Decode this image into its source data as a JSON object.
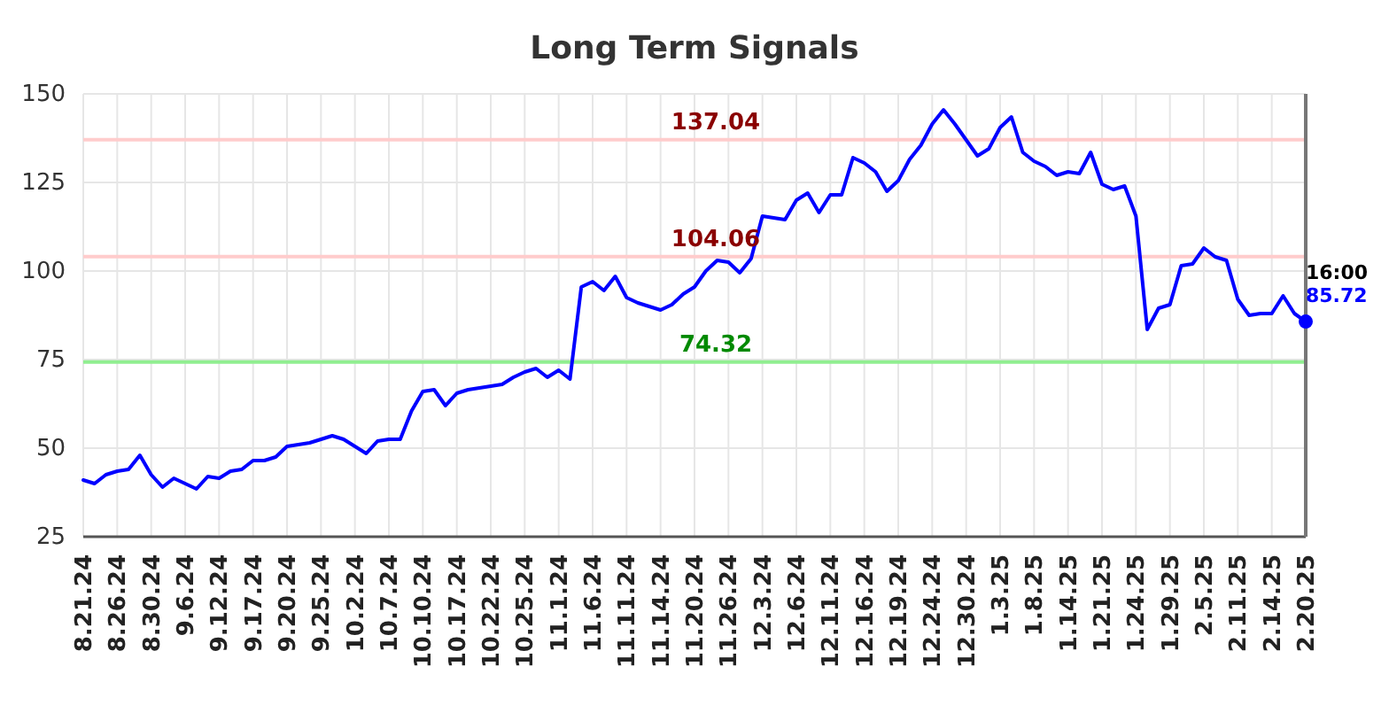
{
  "chart_data": {
    "type": "line",
    "title": "Long Term Signals",
    "categories": [
      "8.21.24",
      null,
      null,
      "8.26.24",
      null,
      null,
      "8.30.24",
      null,
      null,
      "9.6.24",
      null,
      null,
      "9.12.24",
      null,
      null,
      "9.17.24",
      null,
      null,
      "9.20.24",
      null,
      null,
      "9.25.24",
      null,
      null,
      "10.2.24",
      null,
      null,
      "10.7.24",
      null,
      null,
      "10.10.24",
      null,
      null,
      "10.17.24",
      null,
      null,
      "10.22.24",
      null,
      null,
      "10.25.24",
      null,
      null,
      "11.1.24",
      null,
      null,
      "11.6.24",
      null,
      null,
      "11.11.24",
      null,
      null,
      "11.14.24",
      null,
      null,
      "11.20.24",
      null,
      null,
      "11.26.24",
      null,
      null,
      "12.3.24",
      null,
      null,
      "12.6.24",
      null,
      null,
      "12.11.24",
      null,
      null,
      "12.16.24",
      null,
      null,
      "12.19.24",
      null,
      null,
      "12.24.24",
      null,
      null,
      "12.30.24",
      null,
      null,
      "1.3.25",
      null,
      null,
      "1.8.25",
      null,
      null,
      "1.14.25",
      null,
      null,
      "1.21.25",
      null,
      null,
      "1.24.25",
      null,
      null,
      "1.29.25",
      null,
      null,
      "2.5.25",
      null,
      null,
      "2.11.25",
      null,
      null,
      "2.14.25",
      null,
      null,
      "2.20.25"
    ],
    "series": [
      {
        "color": "#0000ff",
        "values": [
          41,
          40,
          42.5,
          43.5,
          44,
          48,
          42.5,
          39,
          41.5,
          40,
          38.5,
          42,
          41.5,
          43.5,
          44,
          46.5,
          46.5,
          47.5,
          50.5,
          51,
          51.5,
          52.5,
          53.5,
          52.5,
          50.5,
          48.5,
          52,
          52.5,
          52.5,
          60.5,
          66,
          66.5,
          62,
          65.5,
          66.5,
          67,
          67.5,
          68,
          70,
          71.5,
          72.5,
          70,
          72,
          69.5,
          95.5,
          97,
          94.5,
          98.5,
          92.5,
          91,
          90,
          89,
          90.5,
          93.5,
          95.5,
          100,
          103,
          102.5,
          99.5,
          103.5,
          115.5,
          115,
          114.5,
          120,
          122,
          116.5,
          121.5,
          121.5,
          132,
          130.5,
          128,
          122.5,
          125.5,
          131.5,
          135.5,
          141.5,
          145.5,
          141.5,
          137,
          132.5,
          134.5,
          140.5,
          143.5,
          133.5,
          131,
          129.5,
          127,
          128,
          127.5,
          133.5,
          124.5,
          123,
          124,
          115.5,
          83.5,
          89.5,
          90.5,
          101.5,
          102,
          106.5,
          104,
          103,
          92,
          87.5,
          88,
          88,
          93,
          88,
          85.72
        ]
      }
    ],
    "ylim": [
      25,
      150
    ],
    "yticks": [
      25,
      50,
      75,
      100,
      125,
      150
    ],
    "grid": true,
    "ref_lines": [
      {
        "axis": "y",
        "value": 137.04,
        "label": "137.04",
        "color": "#ffcccc"
      },
      {
        "axis": "y",
        "value": 104.06,
        "label": "104.06",
        "color": "#ffcccc"
      },
      {
        "axis": "y",
        "value": 74.32,
        "label": "74.32",
        "color": "#90ee90"
      }
    ],
    "annotations": [
      "16:00",
      "85.72"
    ]
  }
}
